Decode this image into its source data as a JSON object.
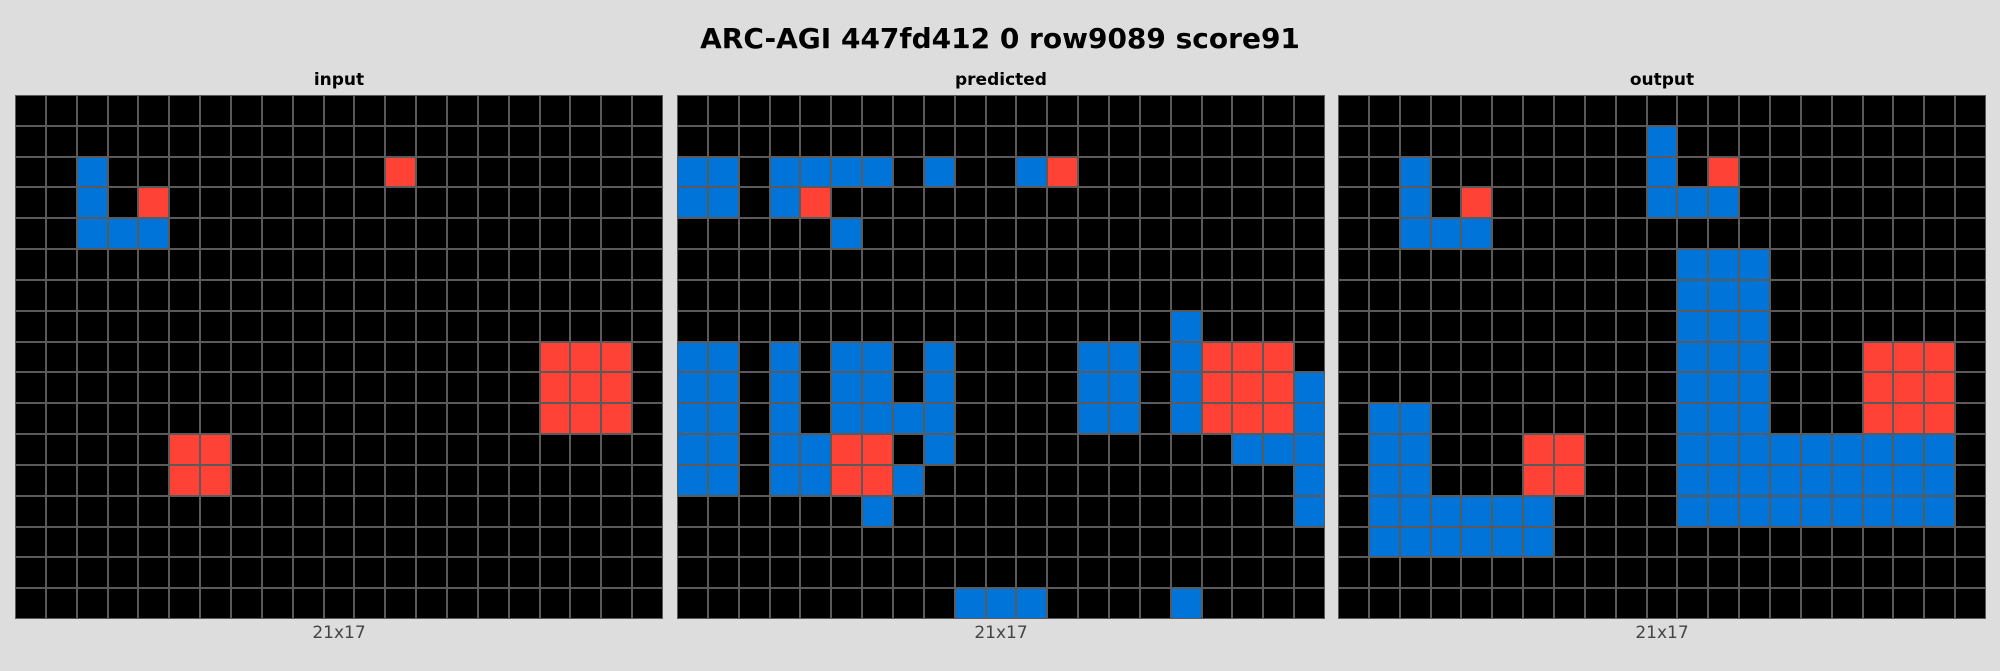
{
  "title": "ARC-AGI 447fd412 0 row9089 score91",
  "colors": {
    "0": "#000000",
    "1": "#0074D9",
    "2": "#FF4136"
  },
  "panels": [
    {
      "label": "input",
      "dims": "21x17",
      "grid": [
        "000000000000000000000",
        "000000000000000000000",
        "001000000000200000000",
        "001020000000000000000",
        "001110000000000000000",
        "000000000000000000000",
        "000000000000000000000",
        "000000000000000000000",
        "000000000000000002220",
        "000000000000000002220",
        "000000000000000002220",
        "000002200000000000000",
        "000002200000000000000",
        "000000000000000000000",
        "000000000000000000000",
        "000000000000000000000",
        "000000000000000000000"
      ]
    },
    {
      "label": "predicted",
      "dims": "21x17",
      "grid": [
        "000000000000000000000",
        "000000000000000000000",
        "110111108001200000000",
        "110120000000000000000",
        "000001000000000000000",
        "000000000000000000000",
        "000000000000000000000",
        "000000000000000010000",
        "110101101000011012220",
        "110101101000011012221",
        "110101111000011012221",
        "110112201000000000111",
        "110112210000000000001",
        "000000100000000000001",
        "000000000000000000000",
        "000000000000000000000",
        "000000000111000010000"
      ]
    },
    {
      "label": "output",
      "dims": "21x17",
      "grid": [
        "000000000000000000000",
        "000000000010000000000",
        "001000000010200000000",
        "001020000011100000000",
        "001110000000000000000",
        "000000000001110000000",
        "000000000001110000000",
        "000000000001110000000",
        "000000000001110002220",
        "000000000001110002220",
        "011000000001110002220",
        "011000220001111111110",
        "011000220001111111110",
        "011111100001111111110",
        "011111100000000000000",
        "000000000000000000000",
        "000000000000000000000"
      ]
    }
  ]
}
